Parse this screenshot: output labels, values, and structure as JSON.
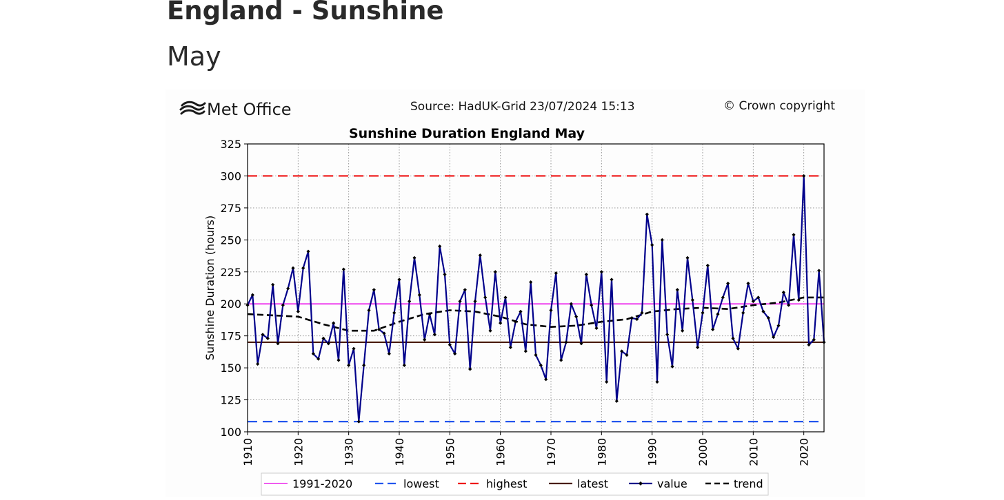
{
  "page": {
    "title": "England - Sunshine",
    "subtitle": "May"
  },
  "header": {
    "logo_text": "Met Office",
    "source": "Source: HadUK-Grid 23/07/2024 15:13",
    "copyright": "© Crown copyright"
  },
  "chart_data": {
    "type": "line",
    "title": "Sunshine Duration England May",
    "xlabel": "",
    "ylabel": "Sunshine Duration (hours)",
    "xlim": [
      1910,
      2024
    ],
    "ylim": [
      100,
      325
    ],
    "xticks": [
      1910,
      1920,
      1930,
      1940,
      1950,
      1960,
      1970,
      1980,
      1990,
      2000,
      2010,
      2020
    ],
    "yticks": [
      100,
      125,
      150,
      175,
      200,
      225,
      250,
      275,
      300,
      325
    ],
    "grid": true,
    "legend_placement": "bottom",
    "colors": {
      "avg_1991_2020": "#ee44ee",
      "lowest": "#2255ee",
      "highest": "#ee1111",
      "latest": "#4a1d00",
      "value": "#00008b",
      "trend": "#000000"
    },
    "reference_lines": {
      "avg_1991_2020": 200,
      "lowest": 108,
      "highest": 300,
      "latest": 170
    },
    "legend": [
      "1991-2020",
      "lowest",
      "highest",
      "latest",
      "value",
      "trend"
    ],
    "series": [
      {
        "name": "value",
        "x": [
          1910,
          1911,
          1912,
          1913,
          1914,
          1915,
          1916,
          1917,
          1918,
          1919,
          1920,
          1921,
          1922,
          1923,
          1924,
          1925,
          1926,
          1927,
          1928,
          1929,
          1930,
          1931,
          1932,
          1933,
          1934,
          1935,
          1936,
          1937,
          1938,
          1939,
          1940,
          1941,
          1942,
          1943,
          1944,
          1945,
          1946,
          1947,
          1948,
          1949,
          1950,
          1951,
          1952,
          1953,
          1954,
          1955,
          1956,
          1957,
          1958,
          1959,
          1960,
          1961,
          1962,
          1963,
          1964,
          1965,
          1966,
          1967,
          1968,
          1969,
          1970,
          1971,
          1972,
          1973,
          1974,
          1975,
          1976,
          1977,
          1978,
          1979,
          1980,
          1981,
          1982,
          1983,
          1984,
          1985,
          1986,
          1987,
          1988,
          1989,
          1990,
          1991,
          1992,
          1993,
          1994,
          1995,
          1996,
          1997,
          1998,
          1999,
          2000,
          2001,
          2002,
          2003,
          2004,
          2005,
          2006,
          2007,
          2008,
          2009,
          2010,
          2011,
          2012,
          2013,
          2014,
          2015,
          2016,
          2017,
          2018,
          2019,
          2020,
          2021,
          2022,
          2023,
          2024
        ],
        "values": [
          199,
          207,
          153,
          176,
          173,
          215,
          169,
          199,
          212,
          228,
          194,
          228,
          241,
          161,
          157,
          173,
          169,
          185,
          156,
          227,
          152,
          165,
          108,
          152,
          195,
          211,
          180,
          177,
          161,
          193,
          219,
          152,
          202,
          236,
          207,
          172,
          192,
          176,
          245,
          223,
          168,
          161,
          202,
          211,
          149,
          202,
          238,
          205,
          179,
          225,
          185,
          205,
          166,
          186,
          194,
          163,
          217,
          160,
          152,
          141,
          195,
          224,
          156,
          170,
          200,
          190,
          169,
          223,
          199,
          181,
          225,
          139,
          219,
          124,
          163,
          160,
          189,
          188,
          193,
          270,
          246,
          139,
          250,
          176,
          151,
          211,
          179,
          236,
          203,
          166,
          193,
          230,
          180,
          192,
          205,
          216,
          173,
          165,
          193,
          216,
          202,
          205,
          194,
          189,
          174,
          183,
          209,
          199,
          254,
          203,
          300,
          168,
          172,
          226,
          170
        ]
      },
      {
        "name": "trend",
        "x": [
          1910,
          1915,
          1920,
          1925,
          1930,
          1935,
          1940,
          1945,
          1950,
          1955,
          1960,
          1965,
          1970,
          1975,
          1980,
          1985,
          1990,
          1995,
          2000,
          2005,
          2010,
          2015,
          2020,
          2024
        ],
        "values": [
          192,
          191,
          190,
          184,
          179,
          179,
          186,
          192,
          195,
          194,
          190,
          184,
          182,
          183,
          186,
          188,
          194,
          196,
          197,
          196,
          199,
          201,
          205,
          205
        ]
      }
    ]
  }
}
